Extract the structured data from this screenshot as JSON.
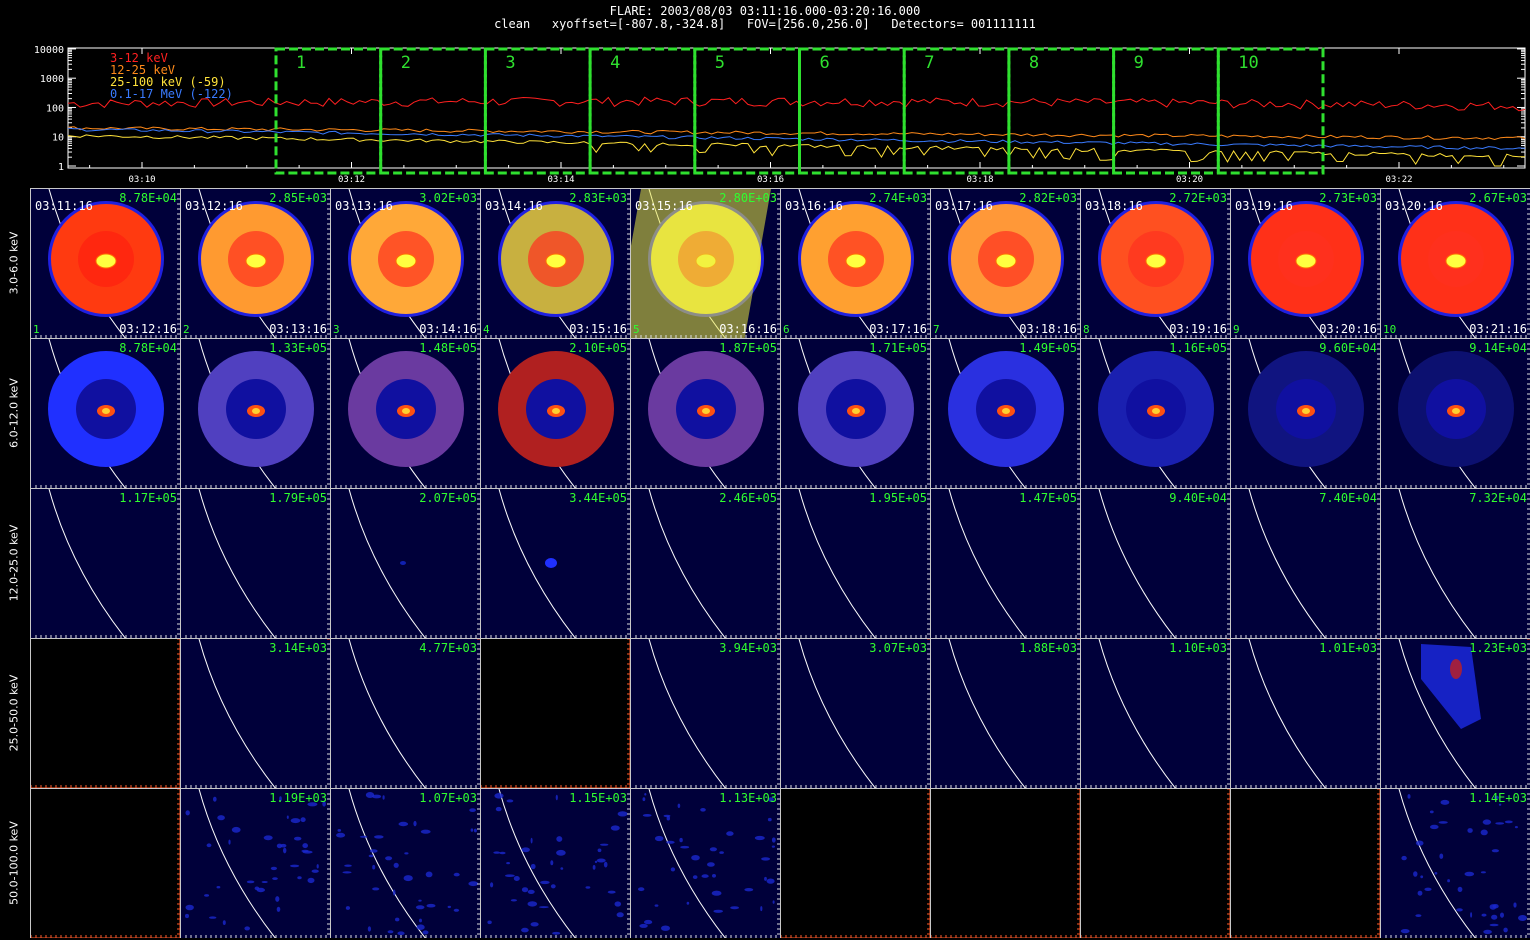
{
  "header": {
    "line1": "FLARE: 2003/08/03 03:11:16.000-03:20:16.000",
    "line2": "clean   xyoffset=[-807.8,-324.8]   FOV=[256.0,256.0]   Detectors= 001111111"
  },
  "lightcurve": {
    "y_ticks": [
      "10000",
      "1000",
      "100",
      "10",
      "1"
    ],
    "x_ticks": [
      "03:10",
      "03:12",
      "03:14",
      "03:16",
      "03:18",
      "03:20",
      "03:22"
    ],
    "legend": [
      {
        "label": "3-12 keV",
        "color": "#ff2020"
      },
      {
        "label": "12-25 keV",
        "color": "#ff8a1a"
      },
      {
        "label": "25-100 keV (-59)",
        "color": "#ffe23a"
      },
      {
        "label": "0.1-17 MeV (-122)",
        "color": "#3a7bff"
      }
    ],
    "intervals": [
      "1",
      "2",
      "3",
      "4",
      "5",
      "6",
      "7",
      "8",
      "9",
      "10"
    ],
    "interval_color": "#2fe02f"
  },
  "energy_bands": [
    "3.0-6.0 keV",
    "6.0-12.0 keV",
    "12.0-25.0 keV",
    "25.0-50.0 keV",
    "50.0-100.0 keV"
  ],
  "time_starts": [
    "03:11:16",
    "03:12:16",
    "03:13:16",
    "03:14:16",
    "03:15:16",
    "03:16:16",
    "03:17:16",
    "03:18:16",
    "03:19:16",
    "03:20:16"
  ],
  "time_ends": [
    "03:12:16",
    "03:13:16",
    "03:14:16",
    "03:15:16",
    "03:16:16",
    "03:17:16",
    "03:18:16",
    "03:19:16",
    "03:20:16",
    "03:21:16"
  ],
  "peaks": [
    [
      "8.78E+04",
      "2.85E+03",
      "3.02E+03",
      "2.83E+03",
      "2.80E+03",
      "2.74E+03",
      "2.82E+03",
      "2.72E+03",
      "2.73E+03",
      "2.67E+03"
    ],
    [
      "8.78E+04",
      "1.33E+05",
      "1.48E+05",
      "2.10E+05",
      "1.87E+05",
      "1.71E+05",
      "1.49E+05",
      "1.16E+05",
      "9.60E+04",
      "9.14E+04"
    ],
    [
      "1.17E+05",
      "1.79E+05",
      "2.07E+05",
      "3.44E+05",
      "2.46E+05",
      "1.95E+05",
      "1.47E+05",
      "9.40E+04",
      "7.40E+04",
      "7.32E+04"
    ],
    [
      "",
      "3.14E+03",
      "4.77E+03",
      "",
      "3.94E+03",
      "3.07E+03",
      "1.88E+03",
      "1.10E+03",
      "1.01E+03",
      "1.23E+03"
    ],
    [
      "",
      "1.19E+03",
      "1.07E+03",
      "1.15E+03",
      "1.13E+03",
      "",
      "",
      "",
      "",
      "1.14E+03"
    ]
  ],
  "empty_axis_ticks": [
    "2",
    "4",
    "6",
    "8"
  ],
  "colors": {
    "background": "#00003a",
    "peak_label": "#2fff2f",
    "ring_band1": [
      "#ff3a10",
      "#ff9a30",
      "#ffa838",
      "#c8b040",
      "#e8e040",
      "#ffa030",
      "#ff9838",
      "#ff5020",
      "#ff3018",
      "#ff3018"
    ],
    "ring_band2": [
      "#2030ff",
      "#5040c0",
      "#6a3aa0",
      "#b02020",
      "#6a3aa0",
      "#5040c0",
      "#2a30e0",
      "#1a20b0",
      "#101480",
      "#0c1070"
    ]
  }
}
